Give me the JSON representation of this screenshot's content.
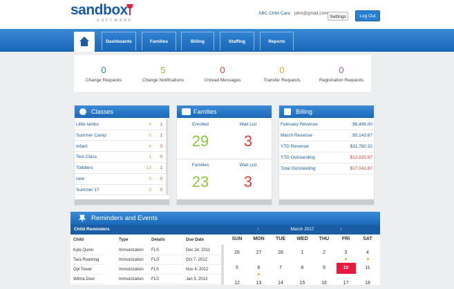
{
  "header": {
    "logo": "sandbox",
    "logo_sub": "SOFTWARE",
    "org": "ABC Child Care",
    "email": "john@gmail.com",
    "settings": "Settings",
    "logout": "Log Out"
  },
  "nav": [
    "Dashboards",
    "Families",
    "Billing",
    "Staffing",
    "Reports"
  ],
  "stats": [
    {
      "value": 0,
      "label": "Change Requests",
      "color": "#2a7fd0"
    },
    {
      "value": 5,
      "label": "Change Notifications",
      "color": "#8dc63f"
    },
    {
      "value": 0,
      "label": "Unread Messages",
      "color": "#e53935"
    },
    {
      "value": 0,
      "label": "Transfer Requests",
      "color": "#f5a623"
    },
    {
      "value": 0,
      "label": "Registration Requests",
      "color": "#9b59b6"
    }
  ],
  "classes": {
    "title": "Classes",
    "rows": [
      [
        "Little lambs",
        4,
        1
      ],
      [
        "Summer Camp",
        0,
        1
      ],
      [
        "Infant",
        4,
        0
      ],
      [
        "Test Class",
        1,
        0
      ],
      [
        "Toddlers",
        13,
        1
      ],
      [
        "new",
        0,
        0
      ],
      [
        "Summer 17",
        0,
        0
      ]
    ]
  },
  "families": {
    "title": "Families",
    "cells": [
      {
        "label": "Enrolled",
        "value": 29,
        "color": "#8dc63f"
      },
      {
        "label": "Wait List",
        "value": 3,
        "color": "#e53935"
      },
      {
        "label": "Families",
        "value": 23,
        "color": "#8dc63f"
      },
      {
        "label": "Wait List",
        "value": 3,
        "color": "#e53935"
      }
    ]
  },
  "billing": {
    "title": "Billing",
    "rows": [
      {
        "label": "February Revenue",
        "amount": "$6,496.00",
        "color": "#1c5aa6"
      },
      {
        "label": "March Revenue",
        "amount": "$5,143.87",
        "color": "#1c5aa6"
      },
      {
        "label": "YTD Revenue",
        "amount": "$31,782.32",
        "color": "#1c5aa6"
      },
      {
        "label": "YTD Outstanding",
        "amount": "$12,825.87",
        "color": "#e53935"
      },
      {
        "label": "Total Outstanding",
        "amount": "$17,041.87",
        "color": "#e53935"
      }
    ]
  },
  "reminders": {
    "title": "Reminders and Events",
    "table_title": "Child Reminders",
    "columns": [
      "Child",
      "Type",
      "Details",
      "Due Date"
    ],
    "rows": [
      [
        "Kyle Quinn",
        "Immunization",
        "FLS",
        "Dec 24, 2011"
      ],
      [
        "Tara Roaming",
        "Immunization",
        "FLS",
        "Oct 7, 2012"
      ],
      [
        "Opi Tower",
        "Immunization",
        "FLS",
        "Nov 4, 2012"
      ],
      [
        "Wilma Door",
        "Immunization",
        "FLS",
        "Jan 5, 2013"
      ]
    ]
  },
  "calendar": {
    "month": "March 2017",
    "weekdays": [
      "SUN",
      "MON",
      "TUE",
      "WED",
      "THU",
      "FRI",
      "SAT"
    ],
    "weeks": [
      [
        26,
        27,
        28,
        1,
        2,
        3,
        4
      ],
      [
        5,
        6,
        7,
        8,
        9,
        10,
        11
      ],
      [
        12,
        13,
        14,
        15,
        16,
        17,
        18
      ]
    ]
  }
}
